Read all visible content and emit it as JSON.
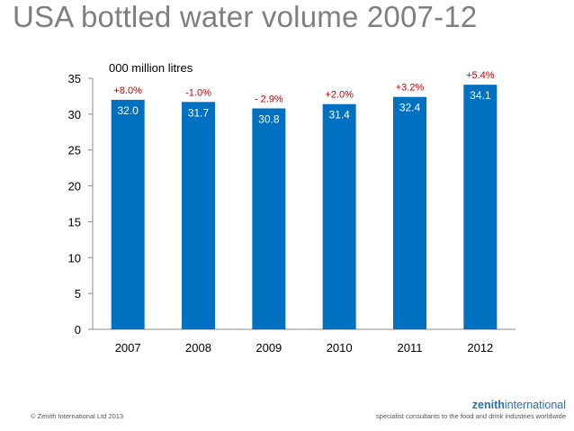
{
  "title": "USA bottled water volume 2007-12",
  "footer": {
    "copyright": "© Zenith International Ltd 2013",
    "brand_bold": "zenith",
    "brand_regular": "international",
    "tagline": "specialist consultants to the food and drink industries worldwide"
  },
  "chart_data": {
    "type": "bar",
    "title": "USA bottled water volume 2007-12",
    "unit_label": "000 million litres",
    "categories": [
      "2007",
      "2008",
      "2009",
      "2010",
      "2011",
      "2012"
    ],
    "values": [
      32.0,
      31.7,
      30.8,
      31.4,
      32.4,
      34.1
    ],
    "value_labels": [
      "32.0",
      "31.7",
      "30.8",
      "31.4",
      "32.4",
      "34.1"
    ],
    "change_labels": [
      "+8.0%",
      "-1.0%",
      "- 2.9%",
      "+2.0%",
      "+3.2%",
      "+5.4%"
    ],
    "ylim": [
      0,
      35
    ],
    "yticks": [
      0,
      5,
      10,
      15,
      20,
      25,
      30,
      35
    ],
    "xlabel": "",
    "ylabel": "",
    "grid": false,
    "bar_color": "#0070c0",
    "change_color": "#c00000",
    "value_label_color": "#ffffff"
  }
}
